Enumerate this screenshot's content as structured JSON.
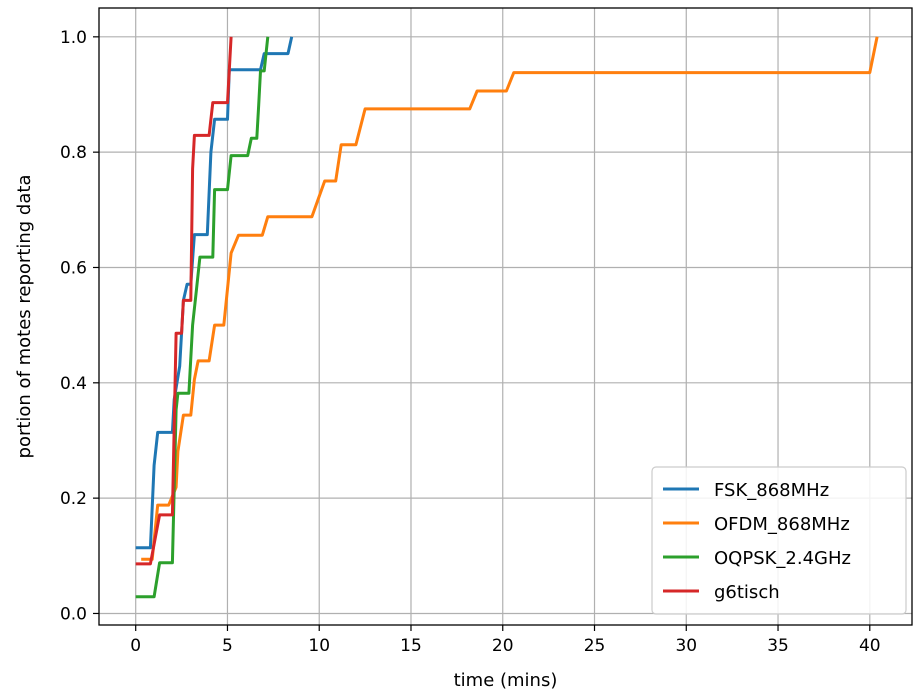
{
  "chart_data": {
    "type": "line",
    "title": "",
    "xlabel": "time (mins)",
    "ylabel": "portion of motes reporting data",
    "xlim": [
      -2,
      42.3
    ],
    "ylim": [
      -0.02,
      1.05
    ],
    "xticks": [
      0,
      5,
      10,
      15,
      20,
      25,
      30,
      35,
      40
    ],
    "yticks": [
      0.0,
      0.2,
      0.4,
      0.6,
      0.8,
      1.0
    ],
    "xtick_labels": [
      "0",
      "5",
      "10",
      "15",
      "20",
      "25",
      "30",
      "35",
      "40"
    ],
    "ytick_labels": [
      "0.0",
      "0.2",
      "0.4",
      "0.6",
      "0.8",
      "1.0"
    ],
    "grid": true,
    "legend_position": "lower-right",
    "series": [
      {
        "name": "FSK_868MHz",
        "color": "#1f77b4",
        "points": [
          [
            0,
            0.114
          ],
          [
            0.8,
            0.114
          ],
          [
            1.0,
            0.257
          ],
          [
            1.2,
            0.314
          ],
          [
            2.0,
            0.314
          ],
          [
            2.1,
            0.371
          ],
          [
            2.4,
            0.429
          ],
          [
            2.6,
            0.543
          ],
          [
            2.8,
            0.571
          ],
          [
            3.0,
            0.571
          ],
          [
            3.2,
            0.657
          ],
          [
            3.9,
            0.657
          ],
          [
            4.1,
            0.8
          ],
          [
            4.3,
            0.857
          ],
          [
            5.0,
            0.857
          ],
          [
            5.1,
            0.943
          ],
          [
            6.8,
            0.943
          ],
          [
            7.0,
            0.971
          ],
          [
            8.3,
            0.971
          ],
          [
            8.5,
            1.0
          ]
        ]
      },
      {
        "name": "OFDM_868MHz",
        "color": "#ff7f0e",
        "points": [
          [
            0.3,
            0.094
          ],
          [
            0.9,
            0.094
          ],
          [
            1.2,
            0.188
          ],
          [
            1.8,
            0.188
          ],
          [
            2.2,
            0.219
          ],
          [
            2.3,
            0.281
          ],
          [
            2.6,
            0.344
          ],
          [
            3.0,
            0.344
          ],
          [
            3.2,
            0.406
          ],
          [
            3.4,
            0.438
          ],
          [
            4.0,
            0.438
          ],
          [
            4.3,
            0.5
          ],
          [
            4.8,
            0.5
          ],
          [
            5.0,
            0.563
          ],
          [
            5.2,
            0.625
          ],
          [
            5.6,
            0.656
          ],
          [
            6.9,
            0.656
          ],
          [
            7.2,
            0.688
          ],
          [
            9.6,
            0.688
          ],
          [
            10.3,
            0.75
          ],
          [
            10.9,
            0.75
          ],
          [
            11.2,
            0.813
          ],
          [
            12.0,
            0.813
          ],
          [
            12.5,
            0.875
          ],
          [
            18.2,
            0.875
          ],
          [
            18.6,
            0.906
          ],
          [
            20.2,
            0.906
          ],
          [
            20.6,
            0.938
          ],
          [
            40.0,
            0.938
          ],
          [
            40.4,
            1.0
          ]
        ]
      },
      {
        "name": "OQPSK_2.4GHz",
        "color": "#2ca02c",
        "points": [
          [
            0,
            0.029
          ],
          [
            1.0,
            0.029
          ],
          [
            1.3,
            0.088
          ],
          [
            2.0,
            0.088
          ],
          [
            2.2,
            0.353
          ],
          [
            2.3,
            0.382
          ],
          [
            2.9,
            0.382
          ],
          [
            3.1,
            0.5
          ],
          [
            3.3,
            0.559
          ],
          [
            3.5,
            0.618
          ],
          [
            4.2,
            0.618
          ],
          [
            4.3,
            0.735
          ],
          [
            5.0,
            0.735
          ],
          [
            5.2,
            0.794
          ],
          [
            6.1,
            0.794
          ],
          [
            6.3,
            0.824
          ],
          [
            6.6,
            0.824
          ],
          [
            6.7,
            0.882
          ],
          [
            6.8,
            0.941
          ],
          [
            7.0,
            0.941
          ],
          [
            7.2,
            1.0
          ]
        ]
      },
      {
        "name": "g6tisch",
        "color": "#d62728",
        "points": [
          [
            0,
            0.086
          ],
          [
            0.8,
            0.086
          ],
          [
            1.3,
            0.171
          ],
          [
            2.0,
            0.171
          ],
          [
            2.2,
            0.486
          ],
          [
            2.5,
            0.486
          ],
          [
            2.6,
            0.543
          ],
          [
            3.0,
            0.543
          ],
          [
            3.1,
            0.771
          ],
          [
            3.2,
            0.829
          ],
          [
            4.0,
            0.829
          ],
          [
            4.2,
            0.886
          ],
          [
            5.0,
            0.886
          ],
          [
            5.2,
            1.0
          ]
        ]
      }
    ]
  }
}
